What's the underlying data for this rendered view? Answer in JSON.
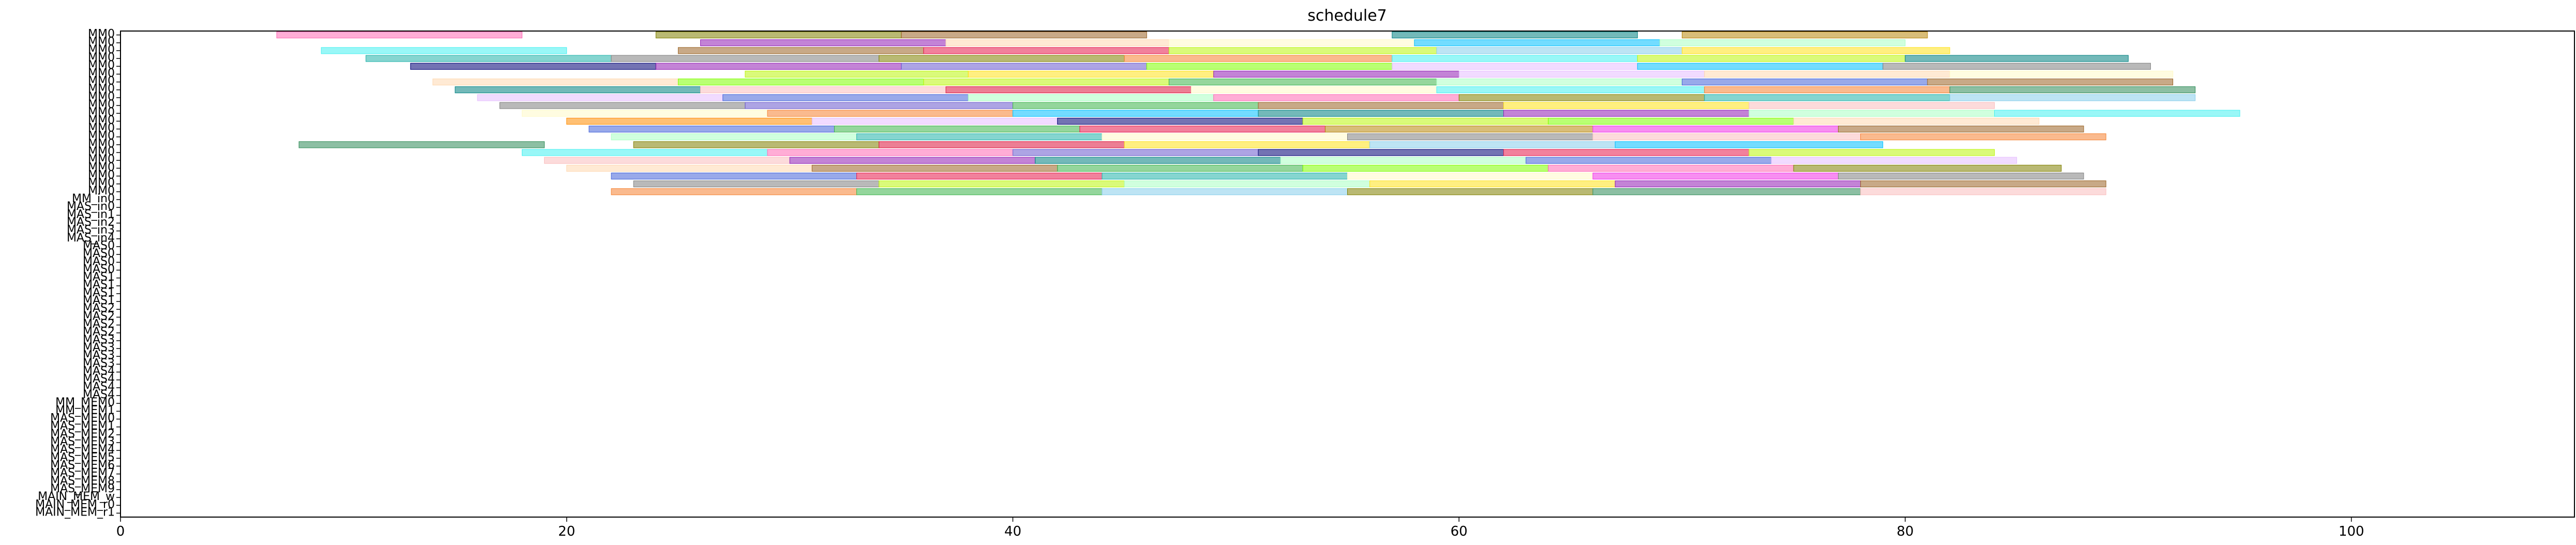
{
  "chart_data": {
    "type": "gantt",
    "title": "schedule7",
    "xlabel": "",
    "ylabel": "",
    "xlim": [
      0,
      110
    ],
    "x_ticks": [
      0,
      20,
      40,
      60,
      80,
      100
    ],
    "grid": false,
    "legend": "none",
    "bar_opacity": 0.55,
    "rows": [
      "MM0",
      "MM0",
      "MM0",
      "MM0",
      "MM0",
      "MM0",
      "MM0",
      "MM0",
      "MM0",
      "MM0",
      "MM0",
      "MM0",
      "MM0",
      "MM0",
      "MM0",
      "MM0",
      "MM0",
      "MM0",
      "MM0",
      "MM0",
      "MM0",
      "MM_in0",
      "MAS_in0",
      "MAS_in1",
      "MAS_in2",
      "MAS_in3",
      "MAS_in4",
      "MAS0",
      "MAS0",
      "MAS0",
      "MAS0",
      "MAS1",
      "MAS1",
      "MAS1",
      "MAS1",
      "MAS2",
      "MAS2",
      "MAS2",
      "MAS2",
      "MAS3",
      "MAS3",
      "MAS3",
      "MAS3",
      "MAS4",
      "MAS4",
      "MAS4",
      "MAS4",
      "MM_MEM0",
      "MM_MEM1",
      "MAS_MEM0",
      "MAS_MEM1",
      "MAS_MEM2",
      "MAS_MEM3",
      "MAS_MEM4",
      "MAS_MEM5",
      "MAS_MEM6",
      "MAS_MEM7",
      "MAS_MEM8",
      "MAS_MEM9",
      "MAIN_MEM_w",
      "MAIN_MEM_r0",
      "MAIN_MEM_r1"
    ],
    "palette": [
      "#e6194b",
      "#3cb44b",
      "#ffe119",
      "#4363d8",
      "#f58231",
      "#911eb4",
      "#46f0f0",
      "#f032e6",
      "#bcf60c",
      "#fabebe",
      "#008080",
      "#e6beff",
      "#9a6324",
      "#fffac8",
      "#800000",
      "#aaffc3",
      "#808000",
      "#ffd8b1",
      "#000075",
      "#808080",
      "#00bfff",
      "#ff69b4",
      "#7fff00",
      "#dc143c",
      "#20b2aa",
      "#ff8c00",
      "#6a5acd",
      "#2e8b57",
      "#b8860b",
      "#87ceeb"
    ],
    "tasks": [
      {
        "row": 0,
        "start": 7,
        "end": 18,
        "c": 21
      },
      {
        "row": 0,
        "start": 24,
        "end": 35,
        "c": 16
      },
      {
        "row": 0,
        "start": 35,
        "end": 46,
        "c": 12
      },
      {
        "row": 0,
        "start": 57,
        "end": 68,
        "c": 10
      },
      {
        "row": 0,
        "start": 70,
        "end": 81,
        "c": 28
      },
      {
        "row": 1,
        "start": 26,
        "end": 37,
        "c": 5
      },
      {
        "row": 1,
        "start": 37,
        "end": 47,
        "c": 17
      },
      {
        "row": 1,
        "start": 47,
        "end": 58,
        "c": 13
      },
      {
        "row": 1,
        "start": 58,
        "end": 69,
        "c": 20
      },
      {
        "row": 1,
        "start": 69,
        "end": 80,
        "c": 15
      },
      {
        "row": 2,
        "start": 9,
        "end": 20,
        "c": 6
      },
      {
        "row": 2,
        "start": 25,
        "end": 36,
        "c": 12
      },
      {
        "row": 2,
        "start": 36,
        "end": 47,
        "c": 0
      },
      {
        "row": 2,
        "start": 47,
        "end": 59,
        "c": 8
      },
      {
        "row": 2,
        "start": 59,
        "end": 70,
        "c": 29
      },
      {
        "row": 2,
        "start": 70,
        "end": 82,
        "c": 2
      },
      {
        "row": 3,
        "start": 11,
        "end": 22,
        "c": 24
      },
      {
        "row": 3,
        "start": 22,
        "end": 34,
        "c": 19
      },
      {
        "row": 3,
        "start": 34,
        "end": 45,
        "c": 16
      },
      {
        "row": 3,
        "start": 45,
        "end": 57,
        "c": 4
      },
      {
        "row": 3,
        "start": 57,
        "end": 68,
        "c": 6
      },
      {
        "row": 3,
        "start": 68,
        "end": 80,
        "c": 8
      },
      {
        "row": 3,
        "start": 80,
        "end": 90,
        "c": 10
      },
      {
        "row": 4,
        "start": 13,
        "end": 24,
        "c": 18
      },
      {
        "row": 4,
        "start": 24,
        "end": 35,
        "c": 5
      },
      {
        "row": 4,
        "start": 35,
        "end": 46,
        "c": 26
      },
      {
        "row": 4,
        "start": 46,
        "end": 57,
        "c": 22
      },
      {
        "row": 4,
        "start": 57,
        "end": 68,
        "c": 11
      },
      {
        "row": 4,
        "start": 68,
        "end": 79,
        "c": 20
      },
      {
        "row": 4,
        "start": 79,
        "end": 91,
        "c": 19
      },
      {
        "row": 5,
        "start": 28,
        "end": 38,
        "c": 8
      },
      {
        "row": 5,
        "start": 38,
        "end": 49,
        "c": 2
      },
      {
        "row": 5,
        "start": 49,
        "end": 60,
        "c": 5
      },
      {
        "row": 5,
        "start": 60,
        "end": 71,
        "c": 11
      },
      {
        "row": 5,
        "start": 71,
        "end": 82,
        "c": 17
      },
      {
        "row": 5,
        "start": 82,
        "end": 92,
        "c": 13
      },
      {
        "row": 6,
        "start": 14,
        "end": 25,
        "c": 17
      },
      {
        "row": 6,
        "start": 25,
        "end": 36,
        "c": 22
      },
      {
        "row": 6,
        "start": 36,
        "end": 47,
        "c": 8
      },
      {
        "row": 6,
        "start": 47,
        "end": 59,
        "c": 1
      },
      {
        "row": 6,
        "start": 59,
        "end": 70,
        "c": 15
      },
      {
        "row": 6,
        "start": 70,
        "end": 81,
        "c": 3
      },
      {
        "row": 6,
        "start": 81,
        "end": 92,
        "c": 12
      },
      {
        "row": 7,
        "start": 15,
        "end": 26,
        "c": 10
      },
      {
        "row": 7,
        "start": 26,
        "end": 37,
        "c": 9
      },
      {
        "row": 7,
        "start": 37,
        "end": 48,
        "c": 23
      },
      {
        "row": 7,
        "start": 48,
        "end": 59,
        "c": 13
      },
      {
        "row": 7,
        "start": 59,
        "end": 71,
        "c": 6
      },
      {
        "row": 7,
        "start": 71,
        "end": 82,
        "c": 4
      },
      {
        "row": 7,
        "start": 82,
        "end": 93,
        "c": 27
      },
      {
        "row": 8,
        "start": 16,
        "end": 27,
        "c": 11
      },
      {
        "row": 8,
        "start": 27,
        "end": 38,
        "c": 3
      },
      {
        "row": 8,
        "start": 38,
        "end": 49,
        "c": 15
      },
      {
        "row": 8,
        "start": 49,
        "end": 60,
        "c": 21
      },
      {
        "row": 8,
        "start": 60,
        "end": 71,
        "c": 16
      },
      {
        "row": 8,
        "start": 71,
        "end": 82,
        "c": 24
      },
      {
        "row": 8,
        "start": 82,
        "end": 93,
        "c": 29
      },
      {
        "row": 9,
        "start": 17,
        "end": 28,
        "c": 19
      },
      {
        "row": 9,
        "start": 28,
        "end": 40,
        "c": 26
      },
      {
        "row": 9,
        "start": 40,
        "end": 51,
        "c": 1
      },
      {
        "row": 9,
        "start": 51,
        "end": 62,
        "c": 12
      },
      {
        "row": 9,
        "start": 62,
        "end": 73,
        "c": 2
      },
      {
        "row": 9,
        "start": 73,
        "end": 84,
        "c": 9
      },
      {
        "row": 10,
        "start": 18,
        "end": 29,
        "c": 13
      },
      {
        "row": 10,
        "start": 29,
        "end": 40,
        "c": 4
      },
      {
        "row": 10,
        "start": 40,
        "end": 51,
        "c": 20
      },
      {
        "row": 10,
        "start": 51,
        "end": 62,
        "c": 10
      },
      {
        "row": 10,
        "start": 62,
        "end": 73,
        "c": 5
      },
      {
        "row": 10,
        "start": 73,
        "end": 84,
        "c": 15
      },
      {
        "row": 10,
        "start": 84,
        "end": 95,
        "c": 6
      },
      {
        "row": 11,
        "start": 20,
        "end": 31,
        "c": 25
      },
      {
        "row": 11,
        "start": 31,
        "end": 42,
        "c": 11
      },
      {
        "row": 11,
        "start": 42,
        "end": 53,
        "c": 18
      },
      {
        "row": 11,
        "start": 53,
        "end": 64,
        "c": 8
      },
      {
        "row": 11,
        "start": 64,
        "end": 75,
        "c": 22
      },
      {
        "row": 11,
        "start": 75,
        "end": 86,
        "c": 17
      },
      {
        "row": 12,
        "start": 21,
        "end": 32,
        "c": 3
      },
      {
        "row": 12,
        "start": 32,
        "end": 43,
        "c": 1
      },
      {
        "row": 12,
        "start": 43,
        "end": 54,
        "c": 0
      },
      {
        "row": 12,
        "start": 54,
        "end": 66,
        "c": 28
      },
      {
        "row": 12,
        "start": 66,
        "end": 77,
        "c": 7
      },
      {
        "row": 12,
        "start": 77,
        "end": 88,
        "c": 12
      },
      {
        "row": 13,
        "start": 22,
        "end": 33,
        "c": 15
      },
      {
        "row": 13,
        "start": 33,
        "end": 44,
        "c": 24
      },
      {
        "row": 13,
        "start": 44,
        "end": 55,
        "c": 13
      },
      {
        "row": 13,
        "start": 55,
        "end": 66,
        "c": 19
      },
      {
        "row": 13,
        "start": 66,
        "end": 78,
        "c": 9
      },
      {
        "row": 13,
        "start": 78,
        "end": 89,
        "c": 4
      },
      {
        "row": 14,
        "start": 8,
        "end": 19,
        "c": 27
      },
      {
        "row": 14,
        "start": 23,
        "end": 34,
        "c": 16
      },
      {
        "row": 14,
        "start": 34,
        "end": 45,
        "c": 23
      },
      {
        "row": 14,
        "start": 45,
        "end": 56,
        "c": 2
      },
      {
        "row": 14,
        "start": 56,
        "end": 67,
        "c": 29
      },
      {
        "row": 14,
        "start": 67,
        "end": 79,
        "c": 20
      },
      {
        "row": 15,
        "start": 18,
        "end": 29,
        "c": 6
      },
      {
        "row": 15,
        "start": 29,
        "end": 40,
        "c": 21
      },
      {
        "row": 15,
        "start": 40,
        "end": 51,
        "c": 26
      },
      {
        "row": 15,
        "start": 51,
        "end": 62,
        "c": 18
      },
      {
        "row": 15,
        "start": 62,
        "end": 73,
        "c": 0
      },
      {
        "row": 15,
        "start": 73,
        "end": 84,
        "c": 8
      },
      {
        "row": 16,
        "start": 19,
        "end": 30,
        "c": 9
      },
      {
        "row": 16,
        "start": 30,
        "end": 41,
        "c": 5
      },
      {
        "row": 16,
        "start": 41,
        "end": 52,
        "c": 10
      },
      {
        "row": 16,
        "start": 52,
        "end": 63,
        "c": 15
      },
      {
        "row": 16,
        "start": 63,
        "end": 74,
        "c": 3
      },
      {
        "row": 16,
        "start": 74,
        "end": 85,
        "c": 11
      },
      {
        "row": 17,
        "start": 20,
        "end": 31,
        "c": 17
      },
      {
        "row": 17,
        "start": 31,
        "end": 42,
        "c": 12
      },
      {
        "row": 17,
        "start": 42,
        "end": 53,
        "c": 1
      },
      {
        "row": 17,
        "start": 53,
        "end": 64,
        "c": 22
      },
      {
        "row": 17,
        "start": 64,
        "end": 75,
        "c": 21
      },
      {
        "row": 17,
        "start": 75,
        "end": 87,
        "c": 16
      },
      {
        "row": 18,
        "start": 22,
        "end": 33,
        "c": 3
      },
      {
        "row": 18,
        "start": 33,
        "end": 44,
        "c": 0
      },
      {
        "row": 18,
        "start": 44,
        "end": 55,
        "c": 24
      },
      {
        "row": 18,
        "start": 55,
        "end": 66,
        "c": 13
      },
      {
        "row": 18,
        "start": 66,
        "end": 77,
        "c": 7
      },
      {
        "row": 18,
        "start": 77,
        "end": 88,
        "c": 19
      },
      {
        "row": 19,
        "start": 23,
        "end": 34,
        "c": 19
      },
      {
        "row": 19,
        "start": 34,
        "end": 45,
        "c": 8
      },
      {
        "row": 19,
        "start": 45,
        "end": 56,
        "c": 15
      },
      {
        "row": 19,
        "start": 56,
        "end": 67,
        "c": 2
      },
      {
        "row": 19,
        "start": 67,
        "end": 78,
        "c": 5
      },
      {
        "row": 19,
        "start": 78,
        "end": 89,
        "c": 12
      },
      {
        "row": 20,
        "start": 22,
        "end": 33,
        "c": 4
      },
      {
        "row": 20,
        "start": 33,
        "end": 44,
        "c": 1
      },
      {
        "row": 20,
        "start": 44,
        "end": 55,
        "c": 29
      },
      {
        "row": 20,
        "start": 55,
        "end": 66,
        "c": 16
      },
      {
        "row": 20,
        "start": 66,
        "end": 78,
        "c": 27
      },
      {
        "row": 20,
        "start": 78,
        "end": 89,
        "c": 9
      }
    ]
  }
}
